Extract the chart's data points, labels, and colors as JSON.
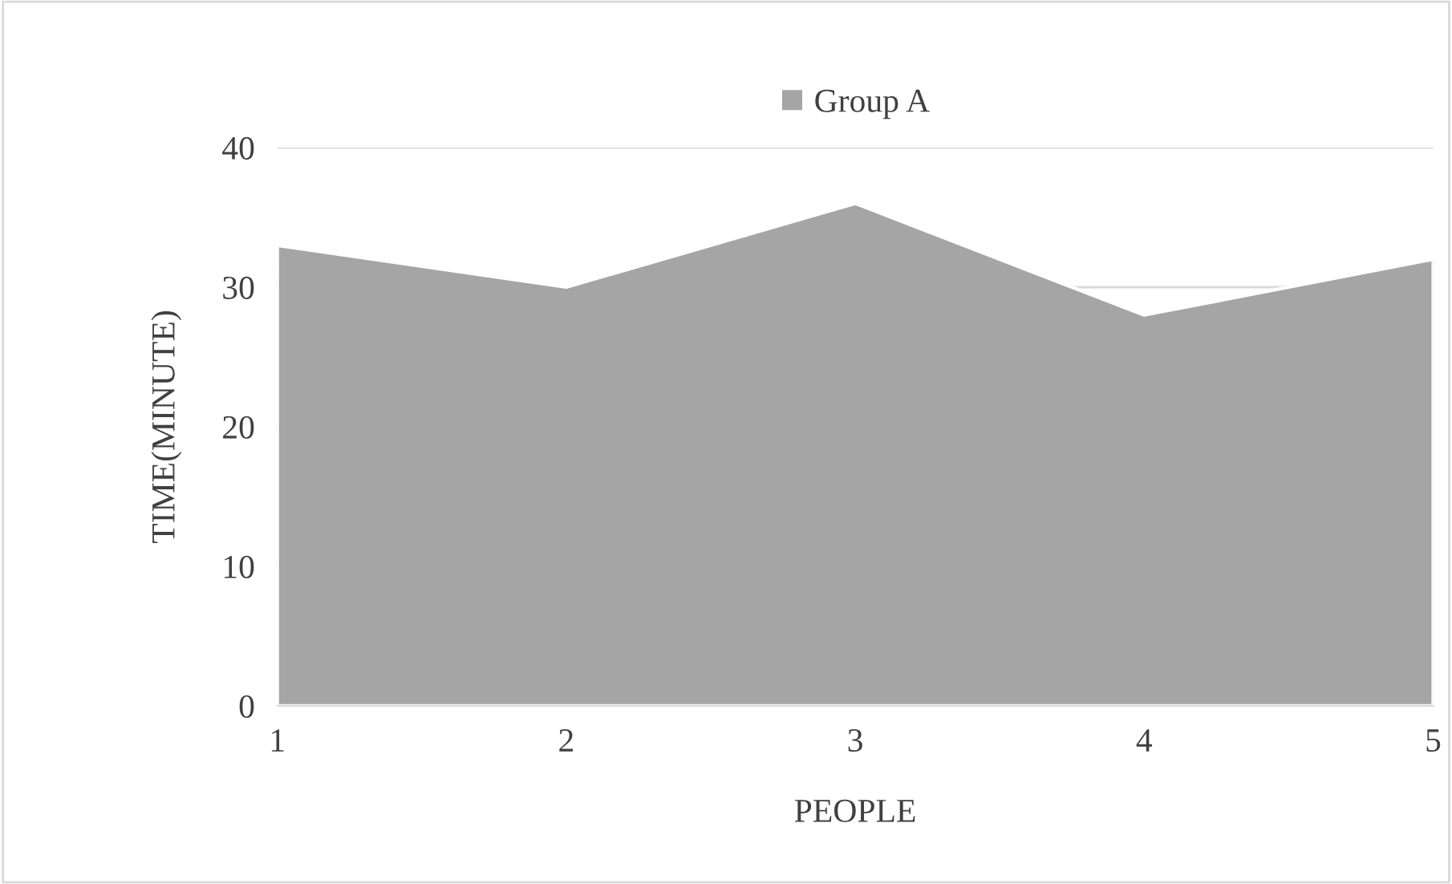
{
  "chart_data": {
    "type": "area",
    "xlabel": "PEOPLE",
    "ylabel": "TIME(MINUTE)",
    "categories": [
      "1",
      "2",
      "3",
      "4",
      "5"
    ],
    "series": [
      {
        "name": "Group A",
        "color": "#a5a5a5",
        "values": [
          33,
          30,
          36,
          28,
          32
        ]
      }
    ],
    "ylim": [
      0,
      40
    ],
    "yticks": [
      0,
      10,
      20,
      30,
      40
    ],
    "grid": "y",
    "legend": "top"
  }
}
